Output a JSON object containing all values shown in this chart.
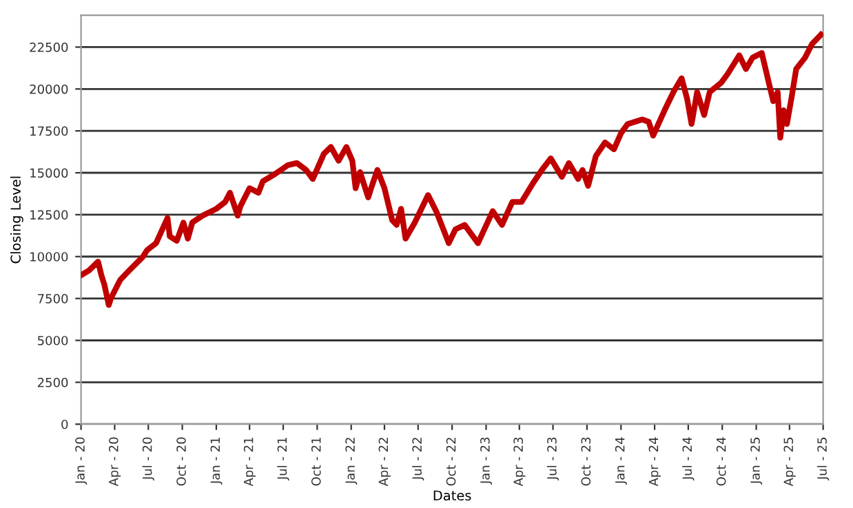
{
  "chart_data": {
    "type": "line",
    "xlabel": "Dates",
    "ylabel": "Closing Level",
    "x": [
      "2020-01-01",
      "2020-01-22",
      "2020-02-10",
      "2020-02-16",
      "2020-02-25",
      "2020-03-04",
      "2020-03-16",
      "2020-03-22",
      "2020-04-16",
      "2020-05-10",
      "2020-06-16",
      "2020-06-28",
      "2020-07-22",
      "2020-08-22",
      "2020-08-28",
      "2020-09-16",
      "2020-10-04",
      "2020-10-16",
      "2020-10-28",
      "2020-11-25",
      "2021-01-01",
      "2021-01-25",
      "2021-02-07",
      "2021-02-28",
      "2021-03-07",
      "2021-04-01",
      "2021-04-25",
      "2021-05-07",
      "2021-06-07",
      "2021-06-25",
      "2021-07-13",
      "2021-08-07",
      "2021-09-01",
      "2021-09-19",
      "2021-10-19",
      "2021-11-07",
      "2021-11-28",
      "2021-12-19",
      "2022-01-04",
      "2022-01-13",
      "2022-01-25",
      "2022-02-16",
      "2022-02-28",
      "2022-03-13",
      "2022-04-01",
      "2022-04-22",
      "2022-05-04",
      "2022-05-16",
      "2022-05-28",
      "2022-06-22",
      "2022-07-10",
      "2022-07-28",
      "2022-08-19",
      "2022-09-22",
      "2022-10-10",
      "2022-11-04",
      "2022-12-10",
      "2023-01-19",
      "2023-02-13",
      "2023-03-13",
      "2023-04-07",
      "2023-05-07",
      "2023-06-01",
      "2023-06-25",
      "2023-07-25",
      "2023-08-13",
      "2023-09-07",
      "2023-09-19",
      "2023-10-04",
      "2023-10-25",
      "2023-11-19",
      "2023-12-13",
      "2024-01-01",
      "2024-01-19",
      "2024-02-28",
      "2024-03-16",
      "2024-03-28",
      "2024-04-28",
      "2024-05-22",
      "2024-06-13",
      "2024-06-28",
      "2024-07-10",
      "2024-07-25",
      "2024-08-13",
      "2024-08-28",
      "2024-09-28",
      "2024-10-16",
      "2024-11-16",
      "2024-12-04",
      "2024-12-22",
      "2025-01-16",
      "2025-02-04",
      "2025-02-16",
      "2025-02-28",
      "2025-03-07",
      "2025-03-16",
      "2025-03-25",
      "2025-04-07",
      "2025-04-19",
      "2025-05-13",
      "2025-06-01",
      "2025-06-25"
    ],
    "series": [
      {
        "color": "#c00000",
        "values": [
          8890,
          9160,
          9570,
          9700,
          8890,
          8340,
          7110,
          7520,
          8610,
          9160,
          9980,
          10390,
          10800,
          12300,
          11210,
          10940,
          12030,
          11070,
          12030,
          12440,
          12850,
          13260,
          13810,
          12440,
          12990,
          14080,
          13810,
          14490,
          14900,
          15170,
          15450,
          15580,
          15170,
          14630,
          16130,
          16540,
          15720,
          16540,
          15720,
          14080,
          15040,
          13530,
          14350,
          15170,
          14080,
          12170,
          11890,
          12850,
          11070,
          12030,
          12850,
          13670,
          12710,
          10800,
          11620,
          11890,
          10800,
          12710,
          11890,
          13260,
          13260,
          14350,
          15170,
          15860,
          14760,
          15580,
          14630,
          15170,
          14220,
          16000,
          16810,
          16400,
          17360,
          17910,
          18180,
          18040,
          17220,
          18730,
          19820,
          20640,
          19410,
          17910,
          19820,
          18450,
          19820,
          20370,
          20910,
          22010,
          21190,
          21870,
          22150,
          20370,
          19270,
          19820,
          17090,
          18730,
          17910,
          19550,
          21190,
          21870,
          22690,
          23240
        ]
      }
    ],
    "xlim": [
      "2020-01-01",
      "2025-07-01"
    ],
    "xticks": [
      {
        "value": "2020-01-01",
        "label": "Jan - 20"
      },
      {
        "value": "2020-04-01",
        "label": "Apr - 20"
      },
      {
        "value": "2020-07-01",
        "label": "Jul - 20"
      },
      {
        "value": "2020-10-01",
        "label": "Oct - 20"
      },
      {
        "value": "2021-01-01",
        "label": "Jan - 21"
      },
      {
        "value": "2021-04-01",
        "label": "Apr - 21"
      },
      {
        "value": "2021-07-01",
        "label": "Jul - 21"
      },
      {
        "value": "2021-10-01",
        "label": "Oct - 21"
      },
      {
        "value": "2022-01-01",
        "label": "Jan - 22"
      },
      {
        "value": "2022-04-01",
        "label": "Apr - 22"
      },
      {
        "value": "2022-07-01",
        "label": "Jul - 22"
      },
      {
        "value": "2022-10-01",
        "label": "Oct - 22"
      },
      {
        "value": "2023-01-01",
        "label": "Jan - 23"
      },
      {
        "value": "2023-04-01",
        "label": "Apr - 23"
      },
      {
        "value": "2023-07-01",
        "label": "Jul - 23"
      },
      {
        "value": "2023-10-01",
        "label": "Oct - 23"
      },
      {
        "value": "2024-01-01",
        "label": "Jan - 24"
      },
      {
        "value": "2024-04-01",
        "label": "Apr - 24"
      },
      {
        "value": "2024-07-01",
        "label": "Jul - 24"
      },
      {
        "value": "2024-10-01",
        "label": "Oct - 24"
      },
      {
        "value": "2025-01-01",
        "label": "Jan - 25"
      },
      {
        "value": "2025-04-01",
        "label": "Apr - 25"
      },
      {
        "value": "2025-07-01",
        "label": "Jul - 25"
      }
    ],
    "ylim": [
      0,
      24400
    ],
    "yticks": [
      0,
      2500,
      5000,
      7500,
      10000,
      12500,
      15000,
      17500,
      20000,
      22500
    ],
    "grid": "y",
    "legend": false,
    "marker": "none",
    "line_style": "solid"
  }
}
